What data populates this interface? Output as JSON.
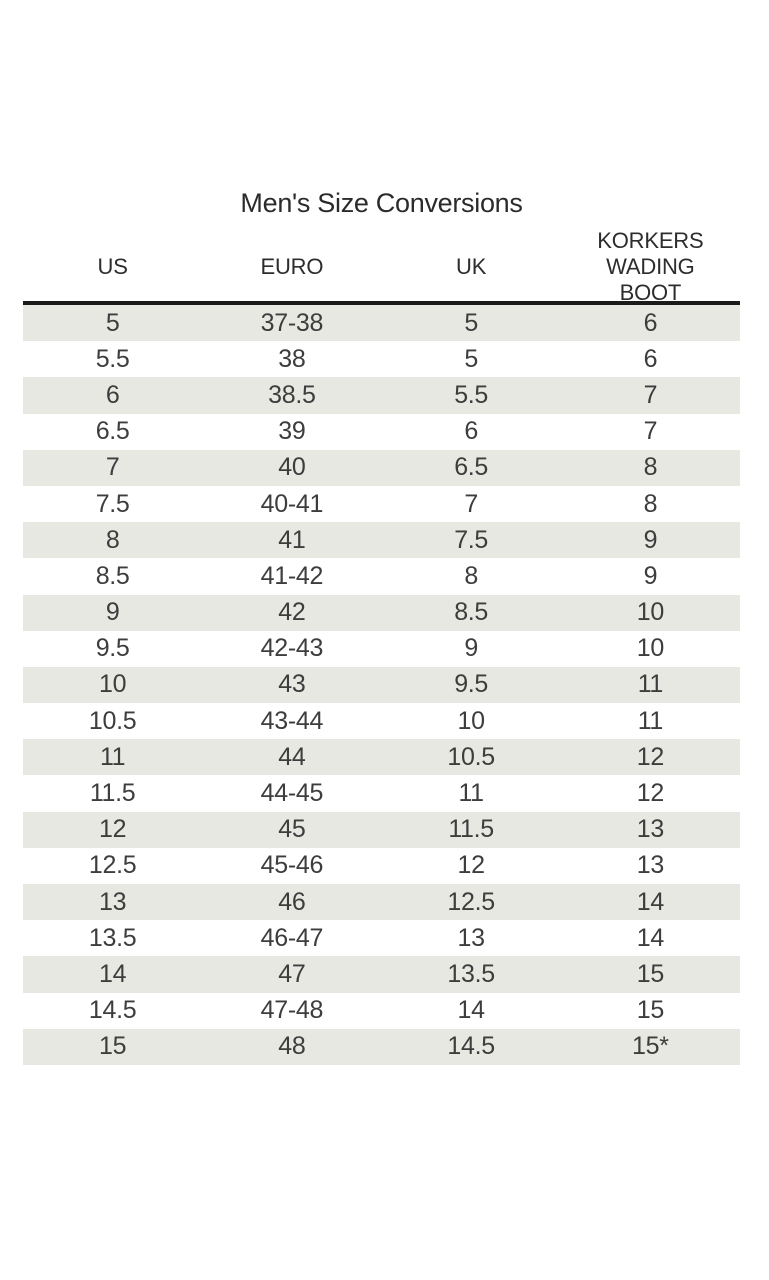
{
  "title": "Men's Size Conversions",
  "table": {
    "columns": [
      {
        "key": "us",
        "label": "US"
      },
      {
        "key": "euro",
        "label": "EURO"
      },
      {
        "key": "uk",
        "label": "UK"
      },
      {
        "key": "korkers-wading-boot",
        "label": "KORKERS WADING BOOT"
      }
    ],
    "rows": [
      [
        "5",
        "37-38",
        "5",
        "6"
      ],
      [
        "5.5",
        "38",
        "5",
        "6"
      ],
      [
        "6",
        "38.5",
        "5.5",
        "7"
      ],
      [
        "6.5",
        "39",
        "6",
        "7"
      ],
      [
        "7",
        "40",
        "6.5",
        "8"
      ],
      [
        "7.5",
        "40-41",
        "7",
        "8"
      ],
      [
        "8",
        "41",
        "7.5",
        "9"
      ],
      [
        "8.5",
        "41-42",
        "8",
        "9"
      ],
      [
        "9",
        "42",
        "8.5",
        "10"
      ],
      [
        "9.5",
        "42-43",
        "9",
        "10"
      ],
      [
        "10",
        "43",
        "9.5",
        "11"
      ],
      [
        "10.5",
        "43-44",
        "10",
        "11"
      ],
      [
        "11",
        "44",
        "10.5",
        "12"
      ],
      [
        "11.5",
        "44-45",
        "11",
        "12"
      ],
      [
        "12",
        "45",
        "11.5",
        "13"
      ],
      [
        "12.5",
        "45-46",
        "12",
        "13"
      ],
      [
        "13",
        "46",
        "12.5",
        "14"
      ],
      [
        "13.5",
        "46-47",
        "13",
        "14"
      ],
      [
        "14",
        "47",
        "13.5",
        "15"
      ],
      [
        "14.5",
        "47-48",
        "14",
        "15"
      ],
      [
        "15",
        "48",
        "14.5",
        "15*"
      ]
    ]
  },
  "colors": {
    "row_stripe": "#e8e8e3",
    "header_rule": "#1b1b1b",
    "body_text": "#3d3d3d",
    "heading_text": "#2b2b2b",
    "background": "#ffffff"
  }
}
